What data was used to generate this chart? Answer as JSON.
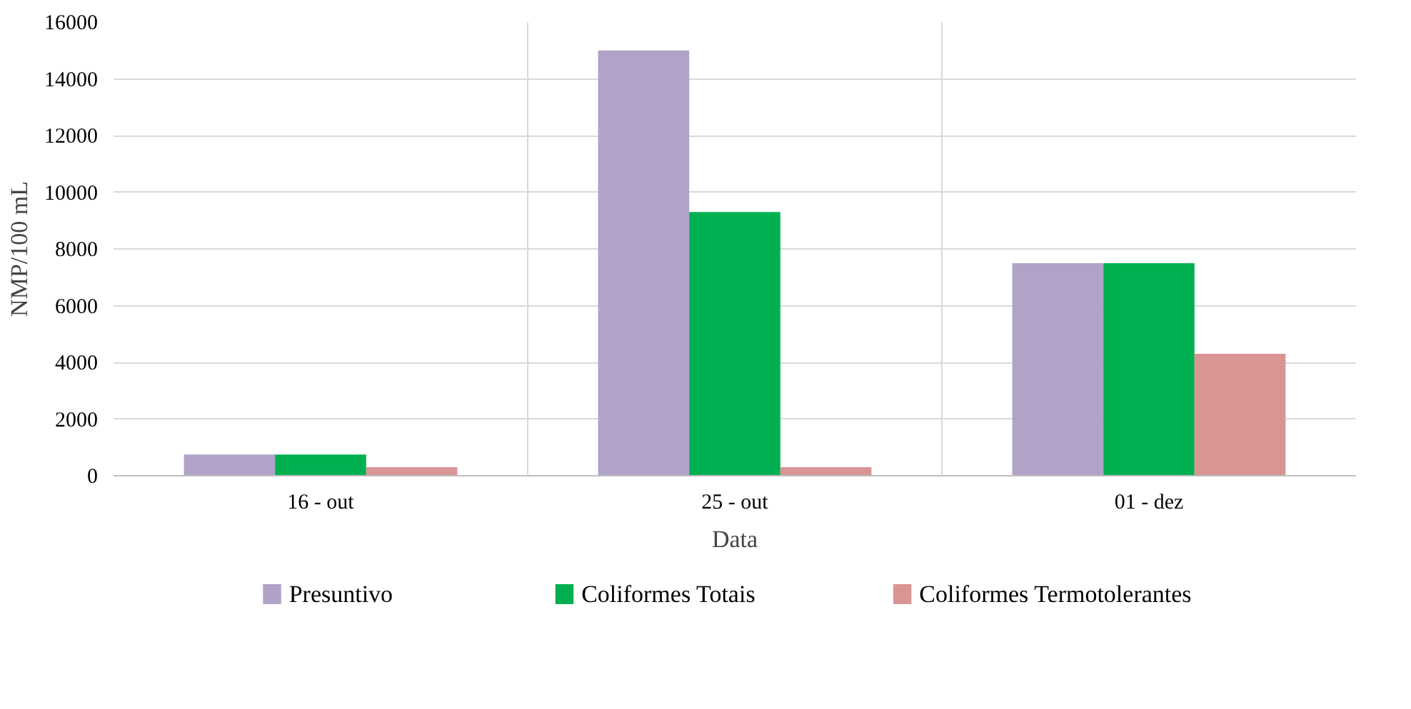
{
  "chart_data": {
    "type": "bar",
    "xlabel": "Data",
    "ylabel": "NMP/100 mL",
    "categories": [
      "16 - out",
      "25 - out",
      "01 - dez"
    ],
    "series": [
      {
        "name": "Presuntivo",
        "color": "#b1a2c8",
        "values": [
          750,
          15000,
          7500
        ]
      },
      {
        "name": "Coliformes Totais",
        "color": "#00b050",
        "values": [
          750,
          9300,
          7500
        ]
      },
      {
        "name": "Coliformes Termotolerantes",
        "color": "#d99594",
        "values": [
          300,
          300,
          4300
        ]
      }
    ],
    "ylim": [
      0,
      16000
    ],
    "yticks": [
      0,
      2000,
      4000,
      6000,
      8000,
      10000,
      12000,
      14000,
      16000
    ],
    "grid": true,
    "legend": "bottom"
  }
}
